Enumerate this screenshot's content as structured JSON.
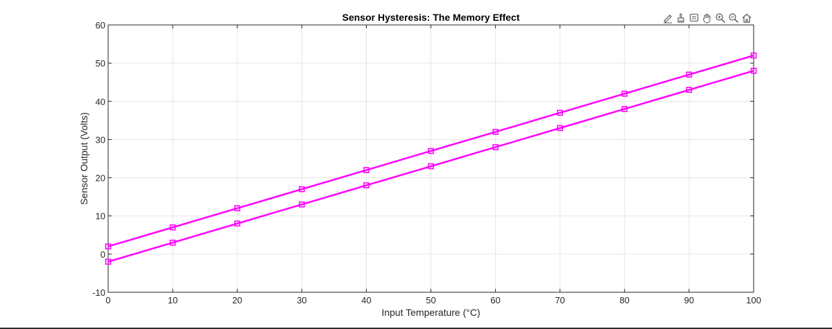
{
  "toolbar": {
    "icons": [
      "edit-icon",
      "brush-icon",
      "datatip-icon",
      "pan-icon",
      "zoom-in-icon",
      "zoom-out-icon",
      "home-icon"
    ]
  },
  "chart_data": {
    "type": "line",
    "title": "Sensor Hysteresis: The Memory Effect",
    "xlabel": "Input Temperature (°C)",
    "ylabel": "Sensor Output (Volts)",
    "xlim": [
      0,
      100
    ],
    "ylim": [
      -10,
      60
    ],
    "xticks": [
      0,
      10,
      20,
      30,
      40,
      50,
      60,
      70,
      80,
      90,
      100
    ],
    "yticks": [
      -10,
      0,
      10,
      20,
      30,
      40,
      50,
      60
    ],
    "grid": true,
    "marker": "square",
    "color": "#ff00ff",
    "x": [
      0,
      10,
      20,
      30,
      40,
      50,
      60,
      70,
      80,
      90,
      100
    ],
    "series": [
      {
        "values": [
          2,
          7,
          12,
          17,
          22,
          27,
          32,
          37,
          42,
          47,
          52
        ]
      },
      {
        "values": [
          -2,
          3,
          8,
          13,
          18,
          23,
          28,
          33,
          38,
          43,
          48
        ]
      }
    ]
  }
}
